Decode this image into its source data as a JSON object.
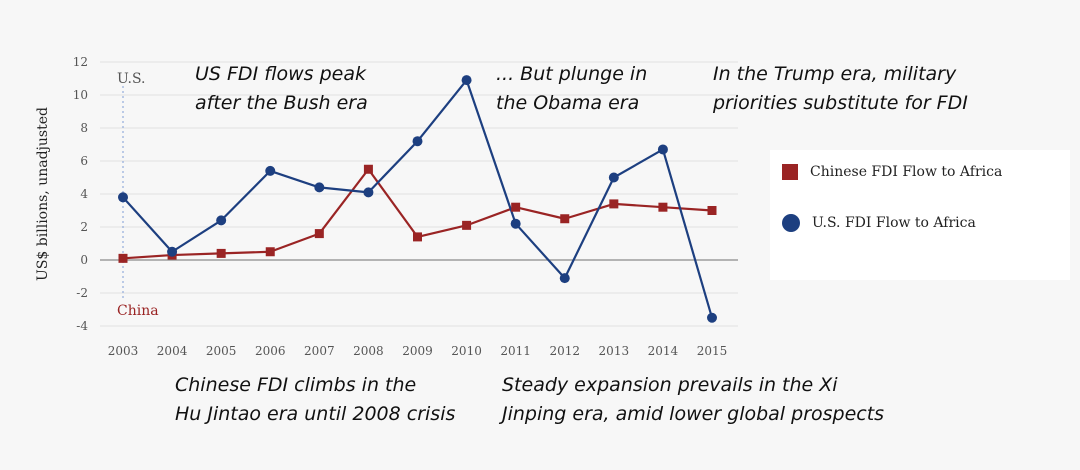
{
  "chart_data": {
    "type": "line",
    "x": [
      "2003",
      "2004",
      "2005",
      "2006",
      "2007",
      "2008",
      "2009",
      "2010",
      "2011",
      "2012",
      "2013",
      "2014",
      "2015"
    ],
    "ylabel": "US$ billions, unadjusted",
    "ylim": [
      -4,
      12
    ],
    "yticks": [
      12,
      10,
      8,
      6,
      4,
      2,
      0,
      -2,
      -4
    ],
    "grid": true,
    "legend_position": "right",
    "series": [
      {
        "name": "Chinese FDI Flow to Africa",
        "marker": "square",
        "color": "#9a2424",
        "values": [
          0.1,
          0.3,
          0.4,
          0.5,
          1.6,
          5.5,
          1.4,
          2.1,
          3.2,
          2.5,
          3.4,
          3.2,
          3.0
        ]
      },
      {
        "name": "U.S. FDI Flow to Africa",
        "marker": "circle",
        "color": "#1d3f80",
        "values": [
          3.8,
          0.5,
          2.4,
          5.4,
          4.4,
          4.1,
          7.2,
          10.9,
          2.2,
          -1.1,
          5.0,
          6.7,
          -3.5
        ]
      }
    ],
    "axis_markers": [
      {
        "label": "U.S.",
        "color": "#555555"
      },
      {
        "label": "China",
        "color": "#9a2424"
      }
    ]
  },
  "annotations": {
    "bush": [
      "US FDI flows peak",
      "after the Bush era"
    ],
    "obama": [
      "... But plunge in",
      "the Obama era"
    ],
    "trump": [
      "In the Trump era, military",
      "priorities substitute for FDI"
    ],
    "hu": [
      "Chinese FDI climbs in the",
      "Hu Jintao era until 2008 crisis"
    ],
    "xi": [
      "Steady expansion prevails in the Xi",
      "Jinping era, amid lower global prospects"
    ]
  }
}
